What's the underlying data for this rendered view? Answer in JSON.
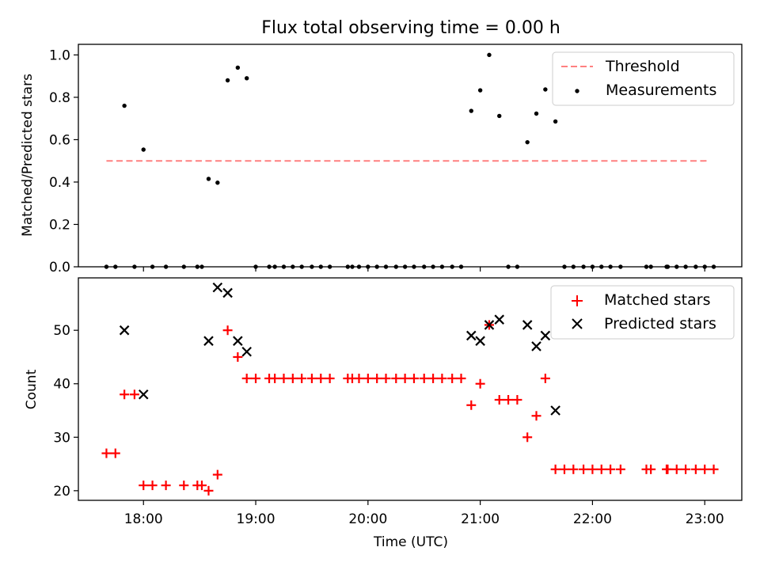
{
  "title": "Flux total observing time = 0.00 h",
  "chart_data": [
    {
      "type": "scatter",
      "ylabel": "Matched/Predicted stars",
      "xlim": [
        17.42,
        23.33
      ],
      "ylim": [
        0.0,
        1.05
      ],
      "yticks": [
        0.0,
        0.2,
        0.4,
        0.6,
        0.8,
        1.0
      ],
      "yticklabels": [
        "0.0",
        "0.2",
        "0.4",
        "0.6",
        "0.8",
        "1.0"
      ],
      "legend": {
        "position": "top-right",
        "entries": [
          "Threshold",
          "Measurements"
        ]
      },
      "colors": {
        "threshold": "#ff8080",
        "measurements": "#000000"
      },
      "threshold": {
        "name": "Threshold",
        "value": 0.5,
        "x_range": [
          17.67,
          23.03
        ]
      },
      "measurements": {
        "name": "Measurements",
        "points": [
          [
            17.67,
            0.0
          ],
          [
            17.75,
            0.0
          ],
          [
            17.83,
            0.76
          ],
          [
            17.92,
            0.0
          ],
          [
            18.0,
            0.553
          ],
          [
            18.08,
            0.0
          ],
          [
            18.2,
            0.0
          ],
          [
            18.36,
            0.0
          ],
          [
            18.48,
            0.0
          ],
          [
            18.52,
            0.0
          ],
          [
            18.58,
            0.415
          ],
          [
            18.66,
            0.397
          ],
          [
            18.75,
            0.88
          ],
          [
            18.84,
            0.94
          ],
          [
            18.92,
            0.89
          ],
          [
            19.0,
            0.0
          ],
          [
            19.12,
            0.0
          ],
          [
            19.17,
            0.0
          ],
          [
            19.25,
            0.0
          ],
          [
            19.33,
            0.0
          ],
          [
            19.41,
            0.0
          ],
          [
            19.5,
            0.0
          ],
          [
            19.58,
            0.0
          ],
          [
            19.66,
            0.0
          ],
          [
            19.82,
            0.0
          ],
          [
            19.86,
            0.0
          ],
          [
            19.92,
            0.0
          ],
          [
            20.0,
            0.0
          ],
          [
            20.08,
            0.0
          ],
          [
            20.16,
            0.0
          ],
          [
            20.25,
            0.0
          ],
          [
            20.33,
            0.0
          ],
          [
            20.41,
            0.0
          ],
          [
            20.5,
            0.0
          ],
          [
            20.58,
            0.0
          ],
          [
            20.66,
            0.0
          ],
          [
            20.75,
            0.0
          ],
          [
            20.83,
            0.0
          ],
          [
            20.92,
            0.736
          ],
          [
            21.0,
            0.833
          ],
          [
            21.08,
            1.0
          ],
          [
            21.17,
            0.712
          ],
          [
            21.25,
            0.0
          ],
          [
            21.33,
            0.0
          ],
          [
            21.42,
            0.588
          ],
          [
            21.5,
            0.723
          ],
          [
            21.58,
            0.837
          ],
          [
            21.67,
            0.686
          ],
          [
            21.75,
            0.0
          ],
          [
            21.83,
            0.0
          ],
          [
            21.92,
            0.0
          ],
          [
            22.0,
            0.0
          ],
          [
            22.08,
            0.0
          ],
          [
            22.16,
            0.0
          ],
          [
            22.25,
            0.0
          ],
          [
            22.48,
            0.0
          ],
          [
            22.52,
            0.0
          ],
          [
            22.66,
            0.0
          ],
          [
            22.67,
            0.0
          ],
          [
            22.75,
            0.0
          ],
          [
            22.83,
            0.0
          ],
          [
            22.92,
            0.0
          ],
          [
            23.0,
            0.0
          ],
          [
            23.08,
            0.0
          ]
        ]
      }
    },
    {
      "type": "scatter",
      "xlabel": "Time (UTC)",
      "ylabel": "Count",
      "xlim": [
        17.42,
        23.33
      ],
      "ylim": [
        18.2,
        59.8
      ],
      "xticks": [
        18,
        19,
        20,
        21,
        22,
        23
      ],
      "xticklabels": [
        "18:00",
        "19:00",
        "20:00",
        "21:00",
        "22:00",
        "23:00"
      ],
      "yticks": [
        20,
        30,
        40,
        50
      ],
      "yticklabels": [
        "20",
        "30",
        "40",
        "50"
      ],
      "legend": {
        "position": "top-right",
        "entries": [
          "Matched stars",
          "Predicted stars"
        ]
      },
      "colors": {
        "matched": "#ff0000",
        "predicted": "#000000"
      },
      "series": [
        {
          "name": "Matched stars",
          "marker": "+",
          "points": [
            [
              17.67,
              27
            ],
            [
              17.75,
              27
            ],
            [
              17.83,
              38
            ],
            [
              17.92,
              38
            ],
            [
              18.0,
              21
            ],
            [
              18.08,
              21
            ],
            [
              18.2,
              21
            ],
            [
              18.36,
              21
            ],
            [
              18.48,
              21
            ],
            [
              18.52,
              21
            ],
            [
              18.58,
              20
            ],
            [
              18.66,
              23
            ],
            [
              18.75,
              50
            ],
            [
              18.84,
              45
            ],
            [
              18.92,
              41
            ],
            [
              19.0,
              41
            ],
            [
              19.12,
              41
            ],
            [
              19.17,
              41
            ],
            [
              19.25,
              41
            ],
            [
              19.33,
              41
            ],
            [
              19.41,
              41
            ],
            [
              19.5,
              41
            ],
            [
              19.58,
              41
            ],
            [
              19.66,
              41
            ],
            [
              19.82,
              41
            ],
            [
              19.86,
              41
            ],
            [
              19.92,
              41
            ],
            [
              20.0,
              41
            ],
            [
              20.08,
              41
            ],
            [
              20.16,
              41
            ],
            [
              20.25,
              41
            ],
            [
              20.33,
              41
            ],
            [
              20.41,
              41
            ],
            [
              20.5,
              41
            ],
            [
              20.58,
              41
            ],
            [
              20.66,
              41
            ],
            [
              20.75,
              41
            ],
            [
              20.83,
              41
            ],
            [
              20.92,
              36
            ],
            [
              21.0,
              40
            ],
            [
              21.08,
              51
            ],
            [
              21.17,
              37
            ],
            [
              21.25,
              37
            ],
            [
              21.33,
              37
            ],
            [
              21.42,
              30
            ],
            [
              21.5,
              34
            ],
            [
              21.58,
              41
            ],
            [
              21.67,
              24
            ],
            [
              21.75,
              24
            ],
            [
              21.83,
              24
            ],
            [
              21.92,
              24
            ],
            [
              22.0,
              24
            ],
            [
              22.08,
              24
            ],
            [
              22.16,
              24
            ],
            [
              22.25,
              24
            ],
            [
              22.48,
              24
            ],
            [
              22.52,
              24
            ],
            [
              22.66,
              24
            ],
            [
              22.67,
              24
            ],
            [
              22.75,
              24
            ],
            [
              22.83,
              24
            ],
            [
              22.92,
              24
            ],
            [
              23.0,
              24
            ],
            [
              23.08,
              24
            ]
          ]
        },
        {
          "name": "Predicted stars",
          "marker": "x",
          "points": [
            [
              17.83,
              50
            ],
            [
              18.0,
              38
            ],
            [
              18.58,
              48
            ],
            [
              18.66,
              58
            ],
            [
              18.75,
              57
            ],
            [
              18.84,
              48
            ],
            [
              18.92,
              46
            ],
            [
              20.92,
              49
            ],
            [
              21.0,
              48
            ],
            [
              21.08,
              51
            ],
            [
              21.17,
              52
            ],
            [
              21.42,
              51
            ],
            [
              21.5,
              47
            ],
            [
              21.58,
              49
            ],
            [
              21.67,
              35
            ]
          ]
        }
      ]
    }
  ]
}
